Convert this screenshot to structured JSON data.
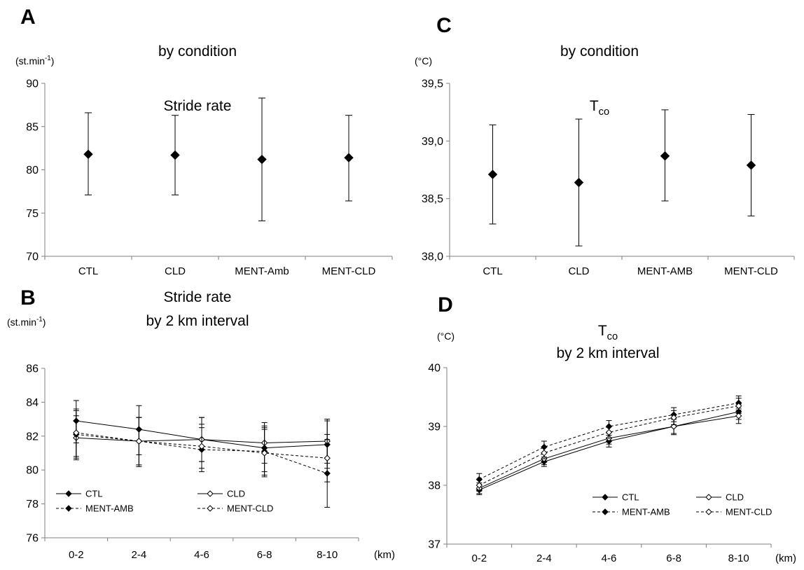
{
  "colors": {
    "ink": "#000000",
    "axis": "#7f7f7f",
    "fill_open": "#ffffff"
  },
  "panels": [
    {
      "id": "A",
      "letter": "A",
      "title_lines": [
        {
          "main": "Stride rate"
        },
        {
          "main": "by condition"
        }
      ],
      "unit": {
        "main": "(st.min",
        "sup": "-1",
        "after": ")"
      },
      "chart_data": {
        "type": "scatter",
        "categories": [
          "CTL",
          "CLD",
          "MENT-Amb",
          "MENT-CLD"
        ],
        "yticks": [
          "70",
          "75",
          "80",
          "85",
          "90"
        ],
        "ylim": [
          70,
          90
        ],
        "series": [
          {
            "marker": "filled-diamond",
            "values": [
              81.8,
              81.7,
              81.2,
              81.4
            ],
            "err_low": [
              77.1,
              77.1,
              74.1,
              76.4
            ],
            "err_high": [
              86.6,
              86.3,
              88.3,
              86.3
            ]
          }
        ],
        "grid": false,
        "legend": "none"
      }
    },
    {
      "id": "C",
      "letter": "C",
      "title_lines": [
        {
          "main": "T",
          "sub": "co"
        },
        {
          "main": "by condition"
        }
      ],
      "unit": {
        "main": "(°C)"
      },
      "chart_data": {
        "type": "scatter",
        "categories": [
          "CTL",
          "CLD",
          "MENT-AMB",
          "MENT-CLD"
        ],
        "yticks": [
          "38,0",
          "38,5",
          "39,0",
          "39,5"
        ],
        "ylim": [
          38.0,
          39.5
        ],
        "series": [
          {
            "marker": "filled-diamond",
            "values": [
              38.71,
              38.64,
              38.87,
              38.79
            ],
            "err_low": [
              38.28,
              38.09,
              38.48,
              38.35
            ],
            "err_high": [
              39.14,
              39.19,
              39.27,
              39.23
            ]
          }
        ],
        "grid": false,
        "legend": "none"
      }
    },
    {
      "id": "B",
      "letter": "B",
      "title_lines": [
        {
          "main": "Stride rate"
        },
        {
          "main": "by 2 km interval"
        }
      ],
      "unit": {
        "main": "(st.min",
        "sup": "-1",
        "after": ")"
      },
      "chart_data": {
        "type": "line",
        "categories": [
          "0-2",
          "2-4",
          "4-6",
          "6-8",
          "8-10"
        ],
        "xunit": "(km)",
        "yticks": [
          "76",
          "78",
          "80",
          "82",
          "84",
          "86"
        ],
        "ylim": [
          76,
          86
        ],
        "series": [
          {
            "name": "CTL",
            "style": "solid",
            "marker": "filled",
            "values": [
              82.9,
              82.4,
              81.8,
              81.3,
              81.5
            ],
            "err_low": [
              81.6,
              80.9,
              80.5,
              79.9,
              80.1
            ],
            "err_high": [
              84.1,
              83.8,
              83.1,
              82.6,
              82.9
            ]
          },
          {
            "name": "CLD",
            "style": "solid",
            "marker": "open",
            "values": [
              81.9,
              81.7,
              81.8,
              81.6,
              81.7
            ],
            "err_low": [
              80.6,
              80.3,
              80.5,
              80.4,
              80.4
            ],
            "err_high": [
              83.2,
              83.1,
              83.1,
              82.8,
              83.0
            ]
          },
          {
            "name": "MENT-AMB",
            "style": "dashed",
            "marker": "filled",
            "values": [
              82.1,
              81.7,
              81.2,
              81.1,
              79.8
            ],
            "err_low": [
              80.7,
              80.2,
              79.9,
              79.7,
              77.8
            ],
            "err_high": [
              83.5,
              83.1,
              82.5,
              82.5,
              81.8
            ]
          },
          {
            "name": "MENT-CLD",
            "style": "dashed",
            "marker": "open",
            "values": [
              82.2,
              81.7,
              81.4,
              81.0,
              80.7
            ],
            "err_low": [
              80.8,
              80.3,
              80.1,
              79.6,
              79.3
            ],
            "err_high": [
              83.6,
              83.1,
              82.7,
              82.4,
              82.1
            ]
          }
        ],
        "grid": false,
        "legend": "bottom-left"
      }
    },
    {
      "id": "D",
      "letter": "D",
      "title_lines": [
        {
          "main": "T",
          "sub": "co"
        },
        {
          "main": "by 2 km interval"
        }
      ],
      "unit": {
        "main": "(°C)"
      },
      "chart_data": {
        "type": "line",
        "categories": [
          "0-2",
          "2-4",
          "4-6",
          "6-8",
          "8-10"
        ],
        "xunit": "(km)",
        "yticks": [
          "37",
          "38",
          "39",
          "40"
        ],
        "ylim": [
          37,
          40
        ],
        "series": [
          {
            "name": "CTL",
            "style": "solid",
            "marker": "filled",
            "values": [
              37.92,
              38.4,
              38.75,
              39.0,
              39.25
            ],
            "err_low": [
              37.84,
              38.32,
              38.65,
              38.88,
              39.12
            ],
            "err_high": [
              38.0,
              38.48,
              38.85,
              39.12,
              39.38
            ]
          },
          {
            "name": "CLD",
            "style": "solid",
            "marker": "open",
            "values": [
              37.95,
              38.45,
              38.8,
              39.0,
              39.18
            ],
            "err_low": [
              37.86,
              38.35,
              38.7,
              38.86,
              39.05
            ],
            "err_high": [
              38.04,
              38.55,
              38.9,
              39.14,
              39.31
            ]
          },
          {
            "name": "MENT-AMB",
            "style": "dashed",
            "marker": "filled",
            "values": [
              38.1,
              38.65,
              39.0,
              39.2,
              39.4
            ],
            "err_low": [
              38.0,
              38.55,
              38.9,
              39.08,
              39.28
            ],
            "err_high": [
              38.2,
              38.75,
              39.1,
              39.32,
              39.52
            ]
          },
          {
            "name": "MENT-CLD",
            "style": "dashed",
            "marker": "open",
            "values": [
              38.0,
              38.55,
              38.9,
              39.15,
              39.35
            ],
            "err_low": [
              37.9,
              38.45,
              38.8,
              39.03,
              39.22
            ],
            "err_high": [
              38.1,
              38.65,
              39.0,
              39.27,
              39.48
            ]
          }
        ],
        "grid": false,
        "legend": "bottom-right"
      }
    }
  ]
}
